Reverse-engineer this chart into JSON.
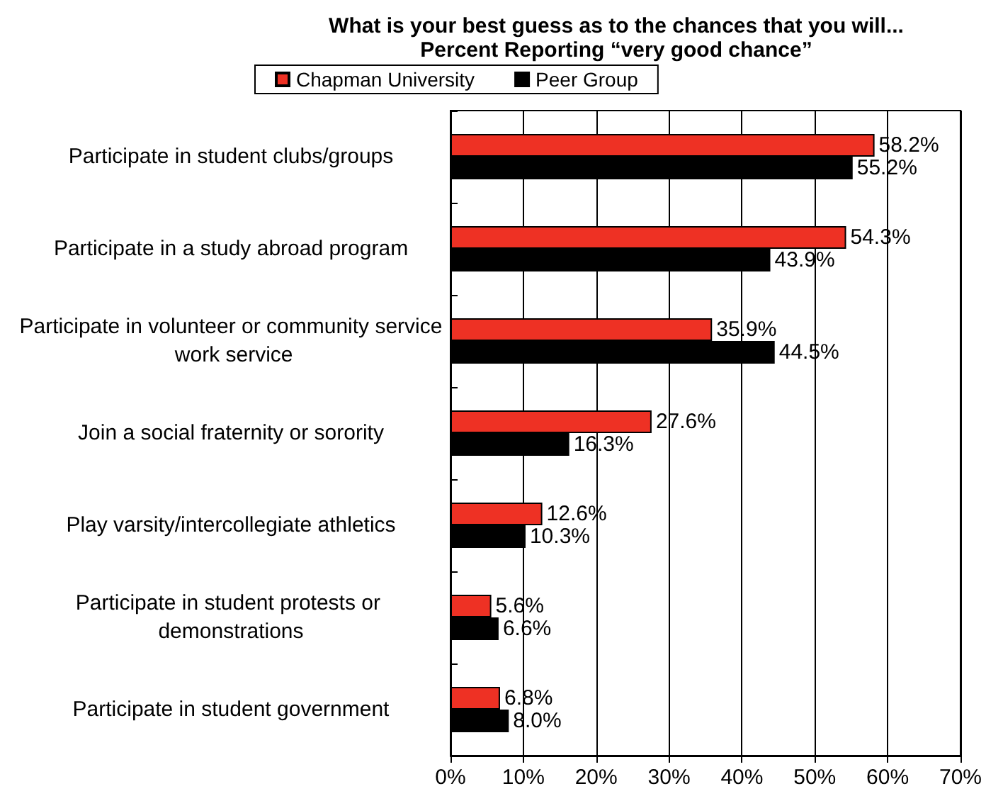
{
  "chart_data": {
    "type": "bar",
    "orientation": "horizontal",
    "title": "What is your best guess as to the chances that you will...",
    "subtitle": "Percent Reporting “very good chance”",
    "categories": [
      "Participate in student clubs/groups",
      "Participate in a study abroad program",
      "Participate in volunteer or community service work service",
      "Join a social fraternity or sorority",
      "Play varsity/intercollegiate athletics",
      "Participate in student protests or demonstrations",
      "Participate in student government"
    ],
    "series": [
      {
        "name": "Chapman University",
        "color": "#ee3124",
        "values": [
          58.2,
          54.3,
          35.9,
          27.6,
          12.6,
          5.6,
          6.8
        ],
        "value_labels": [
          "58.2%",
          "54.3%",
          "35.9%",
          "27.6%",
          "12.6%",
          "5.6%",
          "6.8%"
        ]
      },
      {
        "name": "Peer Group",
        "color": "#000000",
        "values": [
          55.2,
          43.9,
          44.5,
          16.3,
          10.3,
          6.6,
          8.0
        ],
        "value_labels": [
          "55.2%",
          "43.9%",
          "44.5%",
          "16.3%",
          "10.3%",
          "6.6%",
          "8.0%"
        ]
      }
    ],
    "xlim": [
      0,
      70
    ],
    "xticks": [
      {
        "value": 0,
        "label": "0%"
      },
      {
        "value": 10,
        "label": "10%"
      },
      {
        "value": 20,
        "label": "20%"
      },
      {
        "value": 30,
        "label": "30%"
      },
      {
        "value": 40,
        "label": "40%"
      },
      {
        "value": 50,
        "label": "50%"
      },
      {
        "value": 60,
        "label": "60%"
      },
      {
        "value": 70,
        "label": "70%"
      }
    ],
    "grid": "x",
    "legend": "top"
  }
}
